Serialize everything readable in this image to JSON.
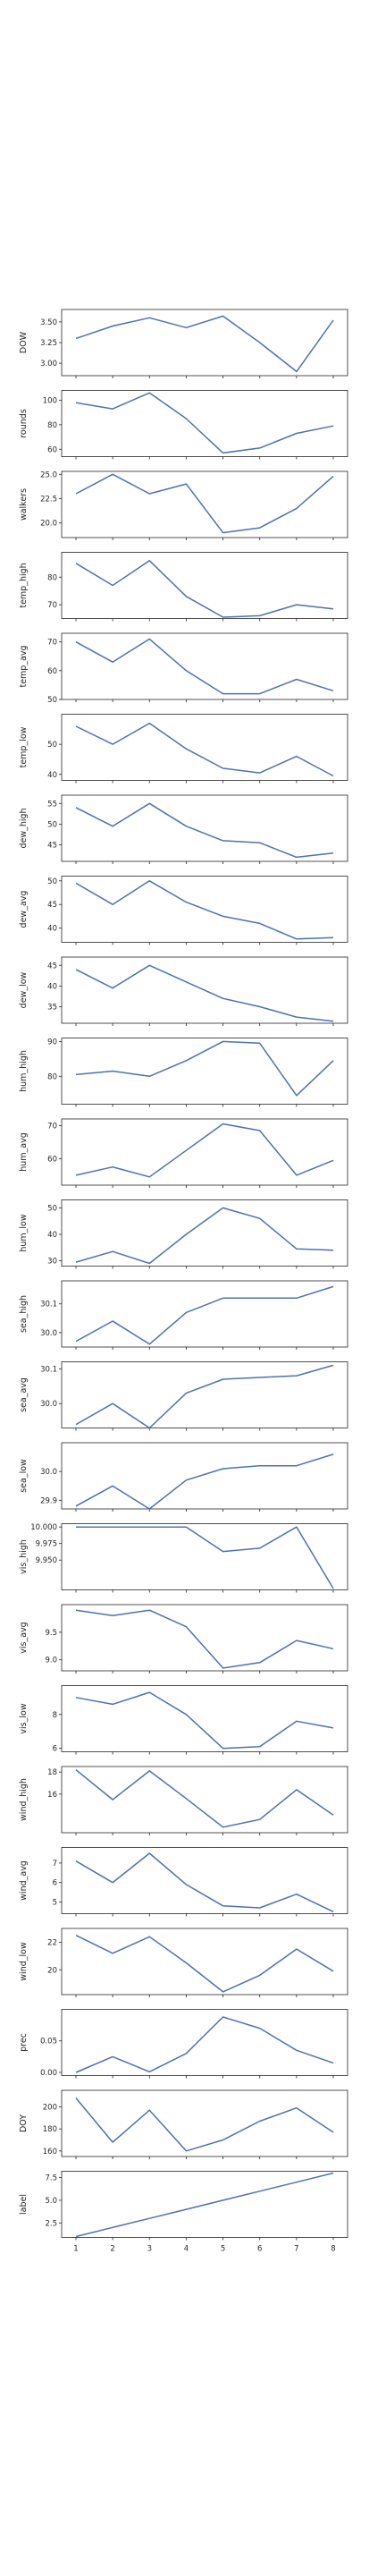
{
  "chart_data": {
    "type": "line",
    "line_color": "#4c72b0",
    "x": [
      1,
      2,
      3,
      4,
      5,
      6,
      7,
      8
    ],
    "xticks": [
      "1",
      "2",
      "3",
      "4",
      "5",
      "6",
      "7",
      "8"
    ],
    "grid": false,
    "sharex": true,
    "panels": [
      {
        "ylabel": "DOW",
        "ylim": [
          2.85,
          3.65
        ],
        "yticks": [
          "3.00",
          "3.25",
          "3.50"
        ],
        "ytick_values": [
          3.0,
          3.25,
          3.5
        ],
        "values": [
          3.3,
          3.45,
          3.55,
          3.43,
          3.57,
          3.25,
          2.9,
          3.52
        ]
      },
      {
        "ylabel": "rounds",
        "ylim": [
          54,
          108
        ],
        "yticks": [
          "60",
          "80",
          "100"
        ],
        "ytick_values": [
          60,
          80,
          100
        ],
        "values": [
          98,
          93,
          106,
          85,
          57,
          61,
          73,
          79
        ]
      },
      {
        "ylabel": "walkers",
        "ylim": [
          18.5,
          25.3
        ],
        "yticks": [
          "20.0",
          "22.5",
          "25.0"
        ],
        "ytick_values": [
          20.0,
          22.5,
          25.0
        ],
        "values": [
          23.0,
          25.0,
          23.0,
          24.0,
          19.0,
          19.5,
          21.5,
          24.8
        ]
      },
      {
        "ylabel": "temp_high",
        "ylim": [
          65,
          89
        ],
        "yticks": [
          "70",
          "80"
        ],
        "ytick_values": [
          70,
          80
        ],
        "values": [
          85,
          77,
          86,
          73,
          65.5,
          66,
          70,
          68.5
        ]
      },
      {
        "ylabel": "temp_avg",
        "ylim": [
          50,
          73
        ],
        "yticks": [
          "50",
          "60",
          "70"
        ],
        "ytick_values": [
          50,
          60,
          70
        ],
        "values": [
          70,
          63,
          71,
          60,
          52,
          52,
          57,
          53
        ]
      },
      {
        "ylabel": "temp_low",
        "ylim": [
          38,
          60
        ],
        "yticks": [
          "40",
          "50"
        ],
        "ytick_values": [
          40,
          50
        ],
        "values": [
          56,
          50,
          57,
          48.5,
          42,
          40.5,
          46,
          39.5
        ]
      },
      {
        "ylabel": "dew_high",
        "ylim": [
          41,
          57
        ],
        "yticks": [
          "45",
          "50",
          "55"
        ],
        "ytick_values": [
          45,
          50,
          55
        ],
        "values": [
          54,
          49.5,
          55,
          49.5,
          46,
          45.5,
          42,
          43
        ]
      },
      {
        "ylabel": "dew_avg",
        "ylim": [
          37,
          51
        ],
        "yticks": [
          "40",
          "45",
          "50"
        ],
        "ytick_values": [
          40,
          45,
          50
        ],
        "values": [
          49.5,
          45,
          50,
          45.5,
          42.5,
          41,
          37.7,
          38
        ]
      },
      {
        "ylabel": "dew_low",
        "ylim": [
          31,
          47
        ],
        "yticks": [
          "35",
          "40",
          "45"
        ],
        "ytick_values": [
          35,
          40,
          45
        ],
        "values": [
          44,
          39.5,
          45,
          41,
          37,
          35,
          32.5,
          31.5
        ]
      },
      {
        "ylabel": "hum_high",
        "ylim": [
          72,
          91
        ],
        "yticks": [
          "80",
          "90"
        ],
        "ytick_values": [
          80,
          90
        ],
        "values": [
          80.5,
          81.5,
          80,
          84.5,
          90,
          89.5,
          74.5,
          84.5
        ]
      },
      {
        "ylabel": "hum_avg",
        "ylim": [
          52,
          72
        ],
        "yticks": [
          "50",
          "60",
          "70"
        ],
        "ytick_values": [
          50,
          60,
          70
        ],
        "values": [
          55,
          57.5,
          54.5,
          62.5,
          70.5,
          68.5,
          55,
          59.5
        ]
      },
      {
        "ylabel": "hum_low",
        "ylim": [
          28,
          53
        ],
        "yticks": [
          "30",
          "40",
          "50"
        ],
        "ytick_values": [
          30,
          40,
          50
        ],
        "values": [
          29.5,
          33.5,
          29,
          40,
          50,
          46,
          34.5,
          34
        ]
      },
      {
        "ylabel": "sea_high",
        "ylim": [
          29.95,
          30.18
        ],
        "yticks": [
          "30.0",
          "30.1"
        ],
        "ytick_values": [
          30.0,
          30.1
        ],
        "values": [
          29.97,
          30.04,
          29.96,
          30.07,
          30.12,
          30.12,
          30.12,
          30.16
        ]
      },
      {
        "ylabel": "sea_avg",
        "ylim": [
          29.93,
          30.12
        ],
        "yticks": [
          "30.0",
          "30.1"
        ],
        "ytick_values": [
          30.0,
          30.1
        ],
        "values": [
          29.94,
          30.0,
          29.93,
          30.03,
          30.07,
          30.075,
          30.08,
          30.11
        ]
      },
      {
        "ylabel": "sea_low",
        "ylim": [
          29.87,
          30.1
        ],
        "yticks": [
          "29.9",
          "30.0"
        ],
        "ytick_values": [
          29.9,
          30.0
        ],
        "values": [
          29.88,
          29.95,
          29.87,
          29.97,
          30.01,
          30.02,
          30.02,
          30.06
        ]
      },
      {
        "ylabel": "vis_high",
        "ylim": [
          9.905,
          10.005
        ],
        "yticks": [
          "9.950",
          "9.975",
          "10.000"
        ],
        "ytick_values": [
          9.95,
          9.975,
          10.0
        ],
        "values": [
          10.0,
          10.0,
          10.0,
          10.0,
          9.963,
          9.968,
          10.0,
          9.907
        ]
      },
      {
        "ylabel": "vis_avg",
        "ylim": [
          8.8,
          10.0
        ],
        "yticks": [
          "9.0",
          "9.5"
        ],
        "ytick_values": [
          9.0,
          9.5
        ],
        "values": [
          9.9,
          9.8,
          9.9,
          9.6,
          8.85,
          8.95,
          9.35,
          9.2
        ]
      },
      {
        "ylabel": "vis_low",
        "ylim": [
          5.8,
          9.7
        ],
        "yticks": [
          "6",
          "8"
        ],
        "ytick_values": [
          6,
          8
        ],
        "values": [
          9.0,
          8.6,
          9.3,
          8.0,
          6.0,
          6.1,
          7.6,
          7.2
        ]
      },
      {
        "ylabel": "wind_high",
        "ylim": [
          12.5,
          18.5
        ],
        "yticks": [
          "16",
          "18"
        ],
        "ytick_values": [
          16,
          18
        ],
        "values": [
          18.2,
          15.5,
          18.1,
          15.6,
          13,
          13.7,
          16.4,
          14.1
        ]
      },
      {
        "ylabel": "wind_avg",
        "ylim": [
          4.4,
          7.8
        ],
        "yticks": [
          "5",
          "6",
          "7"
        ],
        "ytick_values": [
          5,
          6,
          7
        ],
        "values": [
          7.1,
          6.0,
          7.5,
          5.9,
          4.8,
          4.7,
          5.4,
          4.5
        ]
      },
      {
        "ylabel": "wind_low",
        "ylim": [
          18.2,
          23.0
        ],
        "yticks": [
          "20",
          "22"
        ],
        "ytick_values": [
          20,
          22
        ],
        "values": [
          22.5,
          21.2,
          22.4,
          20.5,
          18.4,
          19.6,
          21.5,
          19.9
        ]
      },
      {
        "ylabel": "prec",
        "ylim": [
          -0.005,
          0.1
        ],
        "yticks": [
          "0.00",
          "0.05"
        ],
        "ytick_values": [
          0.0,
          0.05
        ],
        "values": [
          0.0,
          0.025,
          0.001,
          0.03,
          0.088,
          0.07,
          0.035,
          0.015
        ]
      },
      {
        "ylabel": "DOY",
        "ylim": [
          155,
          215
        ],
        "yticks": [
          "160",
          "180",
          "200"
        ],
        "ytick_values": [
          160,
          180,
          200
        ],
        "values": [
          208,
          168,
          197,
          160,
          170,
          187,
          199,
          177
        ]
      },
      {
        "ylabel": "label",
        "ylim": [
          0.9,
          8.2
        ],
        "yticks": [
          "2.5",
          "5.0",
          "7.5"
        ],
        "ytick_values": [
          2.5,
          5.0,
          7.5
        ],
        "values": [
          1,
          2,
          3,
          4,
          5,
          6,
          7,
          8
        ]
      }
    ]
  }
}
